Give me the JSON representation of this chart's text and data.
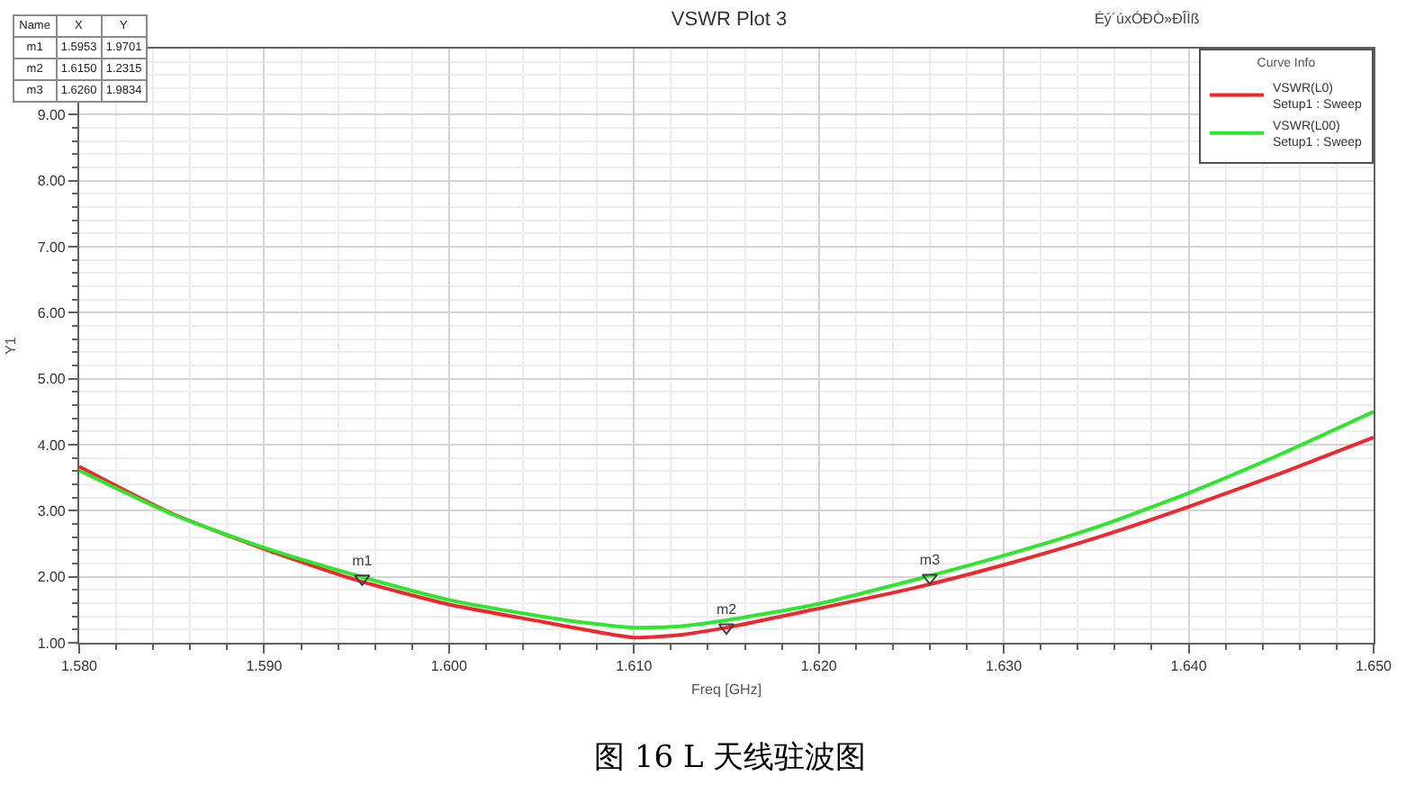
{
  "chart_data": {
    "type": "line",
    "title": "VSWR Plot 3",
    "xlabel": "Freq [GHz]",
    "ylabel": "Y1",
    "legend_title": "Curve Info",
    "legend": "top right",
    "grid": true,
    "marker": "none",
    "line_style": "solid",
    "annotations": [
      "图 16 L 天线驻波图",
      "Éý´úxÓÐÒ»ÐÎÌß",
      "Name",
      "X",
      "Y",
      "m1",
      "1.5953",
      "1.9701",
      "m2",
      "1.6150",
      "1.2315",
      "m3",
      "1.6260",
      "1.9834"
    ],
    "x": [
      1.58,
      1.585,
      1.59,
      1.595,
      1.6,
      1.605,
      1.6075,
      1.61,
      1.6125,
      1.615,
      1.62,
      1.625,
      1.63,
      1.635,
      1.64,
      1.645,
      1.65
    ],
    "series": [
      {
        "name": "VSWR(L0)\nSetup1 : Sweep",
        "color": "#f0282d",
        "values": [
          3.67,
          2.96,
          2.42,
          1.95,
          1.58,
          1.32,
          1.19,
          1.08,
          1.12,
          1.23,
          1.52,
          1.82,
          2.18,
          2.59,
          3.06,
          3.57,
          4.11
        ]
      },
      {
        "name": "VSWR(L00)\nSetup1 : Sweep",
        "color": "#2de62d",
        "values": [
          3.61,
          2.95,
          2.44,
          2.02,
          1.65,
          1.4,
          1.3,
          1.23,
          1.25,
          1.34,
          1.59,
          1.94,
          2.32,
          2.75,
          3.27,
          3.86,
          4.5
        ]
      },
      {
        "type": "scatter",
        "marker": "triangle",
        "color": "#404040",
        "x": [
          1.5953,
          1.615,
          1.626
        ],
        "values": [
          1.9701,
          1.2315,
          1.9834
        ],
        "value_labels": [
          "m1",
          "m2",
          "m3"
        ]
      }
    ],
    "xlim": [
      1.58,
      1.65
    ],
    "xticks": [
      {
        "value": 1.58,
        "label": "1.580"
      },
      {
        "value": 1.59,
        "label": "1.590"
      },
      {
        "value": 1.6,
        "label": "1.600"
      },
      {
        "value": 1.61,
        "label": "1.610"
      },
      {
        "value": 1.62,
        "label": "1.620"
      },
      {
        "value": 1.63,
        "label": "1.630"
      },
      {
        "value": 1.64,
        "label": "1.640"
      },
      {
        "value": 1.65,
        "label": "1.650"
      },
      {
        "value": 1.582,
        "label": null
      },
      {
        "value": 1.584,
        "label": null
      },
      {
        "value": 1.586,
        "label": null
      },
      {
        "value": 1.588,
        "label": null
      },
      {
        "value": 1.592,
        "label": null
      },
      {
        "value": 1.594,
        "label": null
      },
      {
        "value": 1.596,
        "label": null
      },
      {
        "value": 1.598,
        "label": null
      },
      {
        "value": 1.602,
        "label": null
      },
      {
        "value": 1.604,
        "label": null
      },
      {
        "value": 1.606,
        "label": null
      },
      {
        "value": 1.608,
        "label": null
      },
      {
        "value": 1.612,
        "label": null
      },
      {
        "value": 1.614,
        "label": null
      },
      {
        "value": 1.616,
        "label": null
      },
      {
        "value": 1.618,
        "label": null
      },
      {
        "value": 1.622,
        "label": null
      },
      {
        "value": 1.624,
        "label": null
      },
      {
        "value": 1.626,
        "label": null
      },
      {
        "value": 1.628,
        "label": null
      },
      {
        "value": 1.632,
        "label": null
      },
      {
        "value": 1.634,
        "label": null
      },
      {
        "value": 1.636,
        "label": null
      },
      {
        "value": 1.638,
        "label": null
      },
      {
        "value": 1.642,
        "label": null
      },
      {
        "value": 1.644,
        "label": null
      },
      {
        "value": 1.646,
        "label": null
      },
      {
        "value": 1.648,
        "label": null
      }
    ],
    "ylim": [
      1,
      10
    ],
    "yticks": [
      {
        "value": 1,
        "label": "1.00"
      },
      {
        "value": 2,
        "label": "2.00"
      },
      {
        "value": 3,
        "label": "3.00"
      },
      {
        "value": 4,
        "label": "4.00"
      },
      {
        "value": 5,
        "label": "5.00"
      },
      {
        "value": 6,
        "label": "6.00"
      },
      {
        "value": 7,
        "label": "7.00"
      },
      {
        "value": 8,
        "label": "8.00"
      },
      {
        "value": 9,
        "label": "9.00"
      },
      {
        "value": 1.2,
        "label": null
      },
      {
        "value": 1.4,
        "label": null
      },
      {
        "value": 1.6,
        "label": null
      },
      {
        "value": 1.8,
        "label": null
      },
      {
        "value": 2.2,
        "label": null
      },
      {
        "value": 2.4,
        "label": null
      },
      {
        "value": 2.6,
        "label": null
      },
      {
        "value": 2.8,
        "label": null
      },
      {
        "value": 3.2,
        "label": null
      },
      {
        "value": 3.4,
        "label": null
      },
      {
        "value": 3.6,
        "label": null
      },
      {
        "value": 3.8,
        "label": null
      },
      {
        "value": 4.2,
        "label": null
      },
      {
        "value": 4.4,
        "label": null
      },
      {
        "value": 4.6,
        "label": null
      },
      {
        "value": 4.8,
        "label": null
      },
      {
        "value": 5.2,
        "label": null
      },
      {
        "value": 5.4,
        "label": null
      },
      {
        "value": 5.6,
        "label": null
      },
      {
        "value": 5.8,
        "label": null
      },
      {
        "value": 6.2,
        "label": null
      },
      {
        "value": 6.4,
        "label": null
      },
      {
        "value": 6.6,
        "label": null
      },
      {
        "value": 6.8,
        "label": null
      },
      {
        "value": 7.2,
        "label": null
      },
      {
        "value": 7.4,
        "label": null
      },
      {
        "value": 7.6,
        "label": null
      },
      {
        "value": 7.8,
        "label": null
      },
      {
        "value": 8.2,
        "label": null
      },
      {
        "value": 8.4,
        "label": null
      },
      {
        "value": 8.6,
        "label": null
      },
      {
        "value": 8.8,
        "label": null
      },
      {
        "value": 9.2,
        "label": null
      },
      {
        "value": 9.4,
        "label": null
      },
      {
        "value": 9.6,
        "label": null
      },
      {
        "value": 9.8,
        "label": null
      }
    ]
  }
}
